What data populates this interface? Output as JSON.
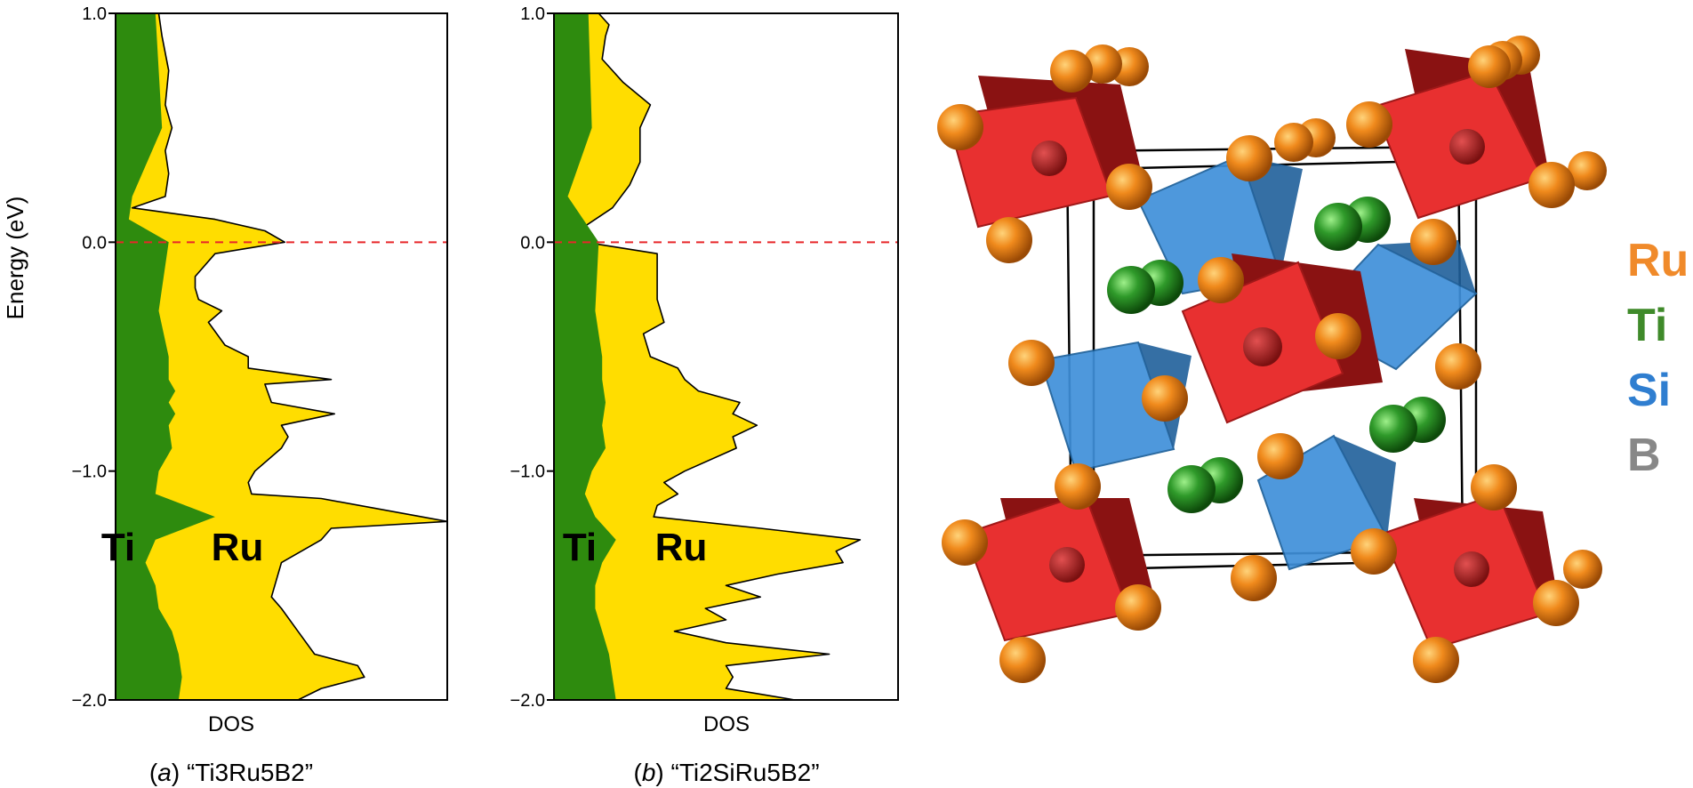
{
  "chart_data": [
    {
      "type": "area",
      "panel_id": "a",
      "ylabel": "Energy (eV)",
      "xlabel": "DOS",
      "caption_letter": "a",
      "caption_formula": "“Ti3Ru5B2”",
      "ylim": [
        -2.0,
        1.0
      ],
      "yticks": [
        "1.0",
        "0.0",
        "−1.0",
        "−2.0"
      ],
      "ytick_values": [
        1.0,
        0.0,
        -1.0,
        -2.0
      ],
      "fermi_level": 0.0,
      "region_labels": [
        "Ti",
        "Ru"
      ],
      "series": [
        {
          "name": "Ti",
          "color": "#2e8b0e",
          "points": [
            [
              1.0,
              0.12
            ],
            [
              0.5,
              0.14
            ],
            [
              0.2,
              0.05
            ],
            [
              0.1,
              0.04
            ],
            [
              0.0,
              0.16
            ],
            [
              -0.3,
              0.13
            ],
            [
              -0.5,
              0.16
            ],
            [
              -0.6,
              0.16
            ],
            [
              -0.65,
              0.18
            ],
            [
              -0.7,
              0.16
            ],
            [
              -0.75,
              0.18
            ],
            [
              -0.8,
              0.16
            ],
            [
              -0.9,
              0.17
            ],
            [
              -1.0,
              0.13
            ],
            [
              -1.1,
              0.12
            ],
            [
              -1.2,
              0.3
            ],
            [
              -1.3,
              0.12
            ],
            [
              -1.4,
              0.09
            ],
            [
              -1.5,
              0.12
            ],
            [
              -1.6,
              0.13
            ],
            [
              -1.7,
              0.17
            ],
            [
              -1.8,
              0.19
            ],
            [
              -1.9,
              0.2
            ],
            [
              -2.0,
              0.19
            ]
          ]
        },
        {
          "name": "Ru",
          "color": "#ffdd00",
          "points": [
            [
              1.0,
              0.13
            ],
            [
              0.9,
              0.14
            ],
            [
              0.75,
              0.16
            ],
            [
              0.6,
              0.15
            ],
            [
              0.5,
              0.17
            ],
            [
              0.4,
              0.15
            ],
            [
              0.3,
              0.16
            ],
            [
              0.2,
              0.15
            ],
            [
              0.15,
              0.05
            ],
            [
              0.1,
              0.3
            ],
            [
              0.05,
              0.45
            ],
            [
              0.0,
              0.51
            ],
            [
              -0.05,
              0.3
            ],
            [
              -0.15,
              0.24
            ],
            [
              -0.2,
              0.24
            ],
            [
              -0.25,
              0.25
            ],
            [
              -0.3,
              0.32
            ],
            [
              -0.35,
              0.28
            ],
            [
              -0.45,
              0.33
            ],
            [
              -0.5,
              0.4
            ],
            [
              -0.55,
              0.4
            ],
            [
              -0.6,
              0.65
            ],
            [
              -0.62,
              0.45
            ],
            [
              -0.7,
              0.47
            ],
            [
              -0.75,
              0.66
            ],
            [
              -0.8,
              0.5
            ],
            [
              -0.85,
              0.52
            ],
            [
              -0.9,
              0.5
            ],
            [
              -1.0,
              0.42
            ],
            [
              -1.05,
              0.4
            ],
            [
              -1.1,
              0.41
            ],
            [
              -1.12,
              0.62
            ],
            [
              -1.22,
              1.0
            ],
            [
              -1.25,
              0.65
            ],
            [
              -1.3,
              0.62
            ],
            [
              -1.4,
              0.5
            ],
            [
              -1.55,
              0.47
            ],
            [
              -1.6,
              0.5
            ],
            [
              -1.7,
              0.55
            ],
            [
              -1.8,
              0.6
            ],
            [
              -1.85,
              0.73
            ],
            [
              -1.9,
              0.75
            ],
            [
              -1.95,
              0.62
            ],
            [
              -2.0,
              0.55
            ]
          ]
        }
      ]
    },
    {
      "type": "area",
      "panel_id": "b",
      "xlabel": "DOS",
      "caption_letter": "b",
      "caption_formula": "“Ti2SiRu5B2”",
      "ylim": [
        -2.0,
        1.0
      ],
      "yticks": [
        "1.0",
        "0.0",
        "−1.0",
        "−2.0"
      ],
      "ytick_values": [
        1.0,
        0.0,
        -1.0,
        -2.0
      ],
      "fermi_level": 0.0,
      "region_labels": [
        "Ti",
        "Ru"
      ],
      "series": [
        {
          "name": "Ti",
          "color": "#2e8b0e",
          "points": [
            [
              1.0,
              0.1
            ],
            [
              0.5,
              0.11
            ],
            [
              0.2,
              0.04
            ],
            [
              0.0,
              0.13
            ],
            [
              -0.3,
              0.12
            ],
            [
              -0.5,
              0.14
            ],
            [
              -0.6,
              0.14
            ],
            [
              -0.7,
              0.15
            ],
            [
              -0.8,
              0.14
            ],
            [
              -0.9,
              0.15
            ],
            [
              -1.0,
              0.11
            ],
            [
              -1.1,
              0.09
            ],
            [
              -1.2,
              0.12
            ],
            [
              -1.3,
              0.18
            ],
            [
              -1.4,
              0.14
            ],
            [
              -1.5,
              0.12
            ],
            [
              -1.6,
              0.12
            ],
            [
              -1.7,
              0.14
            ],
            [
              -1.8,
              0.16
            ],
            [
              -1.9,
              0.17
            ],
            [
              -2.0,
              0.18
            ]
          ]
        },
        {
          "name": "Ru",
          "color": "#ffdd00",
          "points": [
            [
              1.0,
              0.13
            ],
            [
              0.95,
              0.16
            ],
            [
              0.9,
              0.15
            ],
            [
              0.8,
              0.14
            ],
            [
              0.7,
              0.2
            ],
            [
              0.6,
              0.28
            ],
            [
              0.5,
              0.25
            ],
            [
              0.35,
              0.25
            ],
            [
              0.25,
              0.22
            ],
            [
              0.15,
              0.17
            ],
            [
              0.05,
              0.07
            ],
            [
              0.0,
              0.09
            ],
            [
              -0.05,
              0.3
            ],
            [
              -0.15,
              0.3
            ],
            [
              -0.25,
              0.3
            ],
            [
              -0.35,
              0.32
            ],
            [
              -0.4,
              0.26
            ],
            [
              -0.5,
              0.28
            ],
            [
              -0.55,
              0.36
            ],
            [
              -0.6,
              0.38
            ],
            [
              -0.65,
              0.42
            ],
            [
              -0.7,
              0.54
            ],
            [
              -0.75,
              0.52
            ],
            [
              -0.8,
              0.59
            ],
            [
              -0.85,
              0.52
            ],
            [
              -0.9,
              0.53
            ],
            [
              -1.0,
              0.38
            ],
            [
              -1.05,
              0.32
            ],
            [
              -1.1,
              0.36
            ],
            [
              -1.15,
              0.3
            ],
            [
              -1.2,
              0.29
            ],
            [
              -1.25,
              0.6
            ],
            [
              -1.3,
              0.89
            ],
            [
              -1.35,
              0.82
            ],
            [
              -1.4,
              0.84
            ],
            [
              -1.45,
              0.65
            ],
            [
              -1.5,
              0.5
            ],
            [
              -1.55,
              0.6
            ],
            [
              -1.6,
              0.44
            ],
            [
              -1.65,
              0.5
            ],
            [
              -1.7,
              0.35
            ],
            [
              -1.75,
              0.5
            ],
            [
              -1.8,
              0.8
            ],
            [
              -1.85,
              0.5
            ],
            [
              -1.9,
              0.52
            ],
            [
              -1.95,
              0.5
            ],
            [
              -2.0,
              0.7
            ]
          ]
        }
      ]
    }
  ],
  "structure": {
    "legend": [
      {
        "label": "Ru",
        "color": "#f08a2a"
      },
      {
        "label": "Ti",
        "color": "#3f8a2a"
      },
      {
        "label": "Si",
        "color": "#2f7ed0"
      },
      {
        "label": "B",
        "color": "#888888"
      }
    ]
  }
}
